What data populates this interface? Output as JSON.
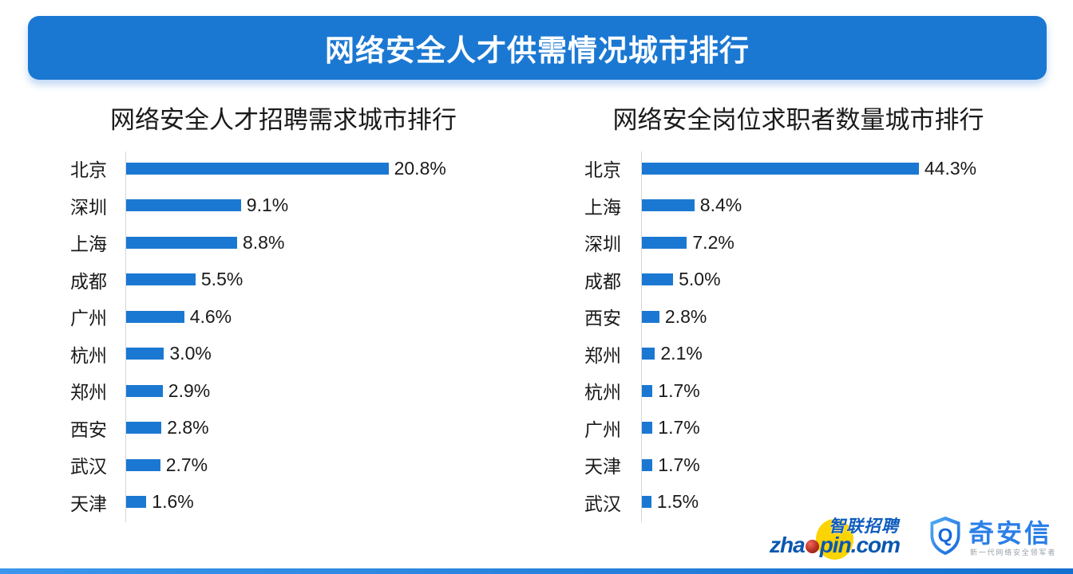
{
  "header": {
    "title": "网络安全人才供需情况城市排行"
  },
  "chart_data": [
    {
      "type": "bar",
      "orientation": "horizontal",
      "title": "网络安全人才招聘需求城市排行",
      "categories": [
        "北京",
        "深圳",
        "上海",
        "成都",
        "广州",
        "杭州",
        "郑州",
        "西安",
        "武汉",
        "天津"
      ],
      "values": [
        20.8,
        9.1,
        8.8,
        5.5,
        4.6,
        3.0,
        2.9,
        2.8,
        2.7,
        1.6
      ],
      "value_suffix": "%",
      "value_labels": "end-of-bar",
      "xlim": [
        0,
        22
      ],
      "grid": false,
      "legend": false,
      "bar_color": "#1B78D2"
    },
    {
      "type": "bar",
      "orientation": "horizontal",
      "title": "网络安全岗位求职者数量城市排行",
      "categories": [
        "北京",
        "上海",
        "深圳",
        "成都",
        "西安",
        "郑州",
        "杭州",
        "广州",
        "天津",
        "武汉"
      ],
      "values": [
        44.3,
        8.4,
        7.2,
        5.0,
        2.8,
        2.1,
        1.7,
        1.7,
        1.7,
        1.5
      ],
      "value_suffix": "%",
      "value_labels": "end-of-bar",
      "xlim": [
        0,
        47
      ],
      "grid": false,
      "legend": false,
      "bar_color": "#1B78D2"
    }
  ],
  "footer": {
    "zhaopin_cn": "智联招聘",
    "zhaopin_url_pre": "zha",
    "zhaopin_url_post": "pin.com",
    "qianxin_name": "奇安信",
    "qianxin_q": "Q",
    "qianxin_tagline": "新一代网络安全领军者"
  },
  "colors": {
    "header_bg": "#1B78D2",
    "bar": "#1B78D2",
    "bottom_strip_left": "#3B96EC",
    "bottom_strip_right": "#1470CE",
    "zhaopin_yellow": "#FCD303",
    "zhaopin_blue": "#0A57B0",
    "qianxin_blue": "#2B7FE8"
  }
}
